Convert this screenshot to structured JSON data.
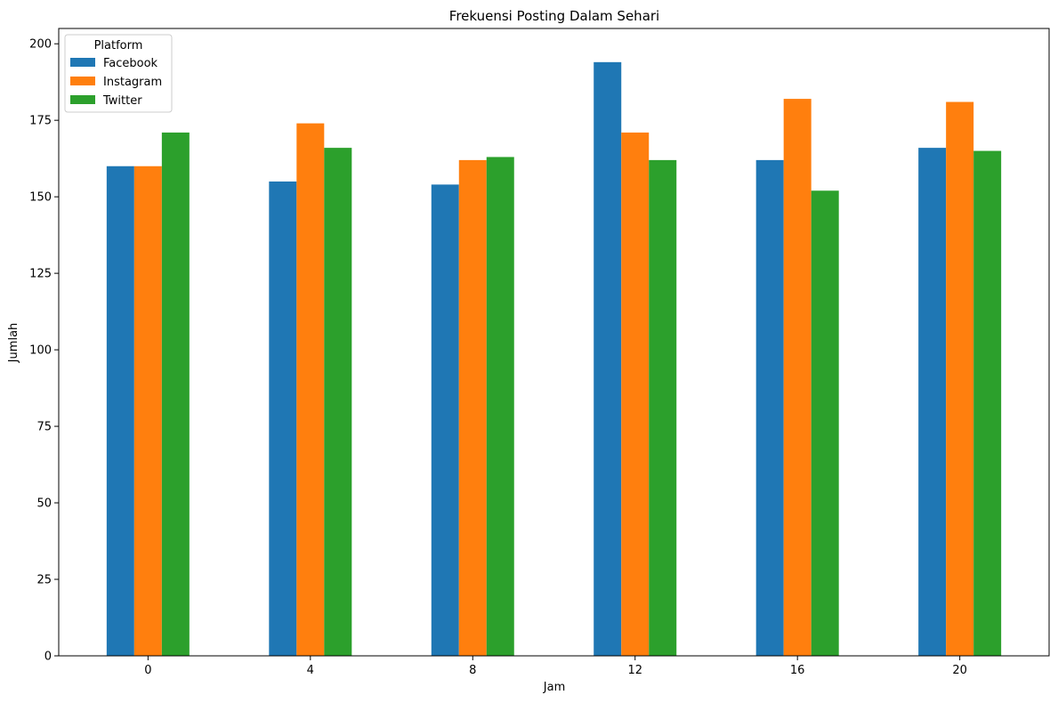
{
  "chart_data": {
    "type": "bar",
    "title": "Frekuensi Posting Dalam Sehari",
    "xlabel": "Jam",
    "ylabel": "Jumlah",
    "categories": [
      "0",
      "4",
      "8",
      "12",
      "16",
      "20"
    ],
    "ylim": [
      0,
      205
    ],
    "yticks": [
      0,
      25,
      50,
      75,
      100,
      125,
      150,
      175,
      200
    ],
    "grid": false,
    "legend": {
      "title": "Platform",
      "placement": "top-left"
    },
    "series": [
      {
        "name": "Facebook",
        "color": "#1f77b4",
        "values": [
          160,
          155,
          154,
          194,
          162,
          166
        ]
      },
      {
        "name": "Instagram",
        "color": "#ff7f0e",
        "values": [
          160,
          174,
          162,
          171,
          182,
          181
        ]
      },
      {
        "name": "Twitter",
        "color": "#2ca02c",
        "values": [
          171,
          166,
          163,
          162,
          152,
          165
        ]
      }
    ]
  }
}
